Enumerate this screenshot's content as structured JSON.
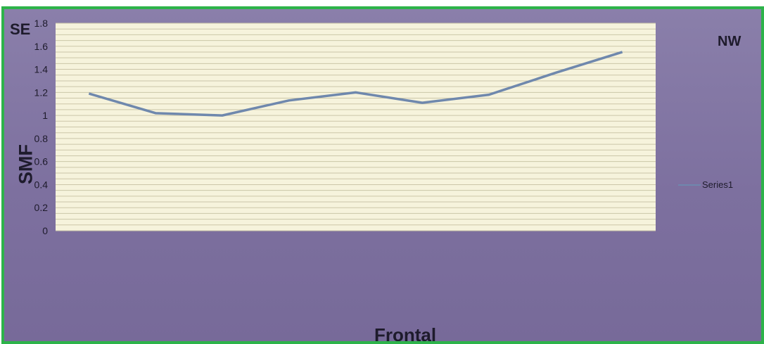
{
  "chart_data": {
    "type": "line",
    "title": "",
    "xlabel": "Frontal",
    "ylabel": "SMF",
    "corner_labels": {
      "top_left": "SE",
      "top_right": "NW"
    },
    "x": [
      1,
      2,
      3,
      4,
      5,
      6,
      7,
      8,
      9
    ],
    "series": [
      {
        "name": "Series1",
        "values": [
          1.19,
          1.02,
          1.0,
          1.13,
          1.2,
          1.11,
          1.18,
          1.37,
          1.55
        ]
      }
    ],
    "ylim": [
      0,
      1.8
    ],
    "yticks": [
      "0",
      "0.2",
      "0.4",
      "0.6",
      "0.8",
      "1",
      "1.2",
      "1.4",
      "1.6",
      "1.8"
    ],
    "grid": true,
    "legend_position": "right",
    "colors": {
      "line": "#6f88ad",
      "plot_background": "#f6f3dc",
      "gridline": "#cbc6a8",
      "frame_background": "#7d709f",
      "border": "#2db34a"
    }
  }
}
